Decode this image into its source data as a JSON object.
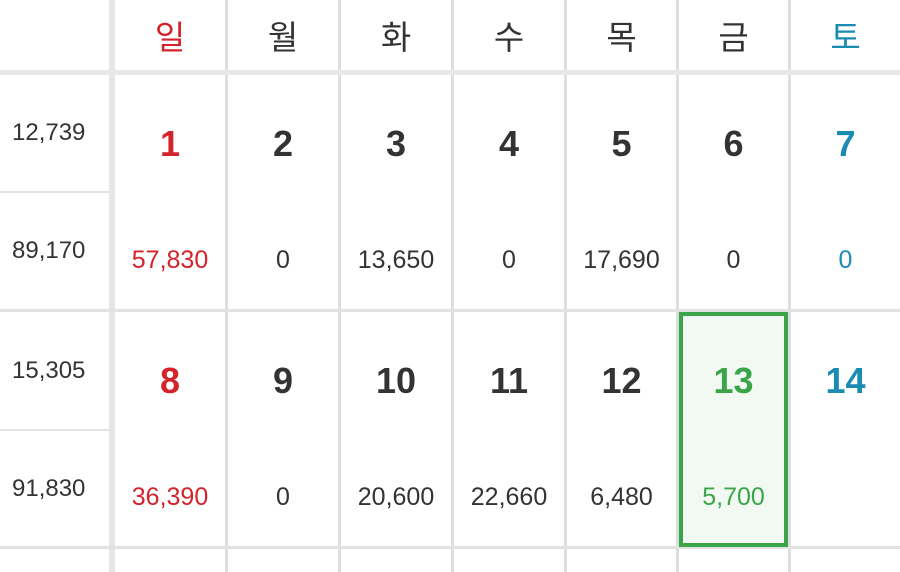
{
  "header": {
    "weekdays": [
      "일",
      "월",
      "화",
      "수",
      "목",
      "금",
      "토"
    ]
  },
  "weeks": [
    {
      "side_top": "12,739",
      "side_bottom": "89,170",
      "days": [
        "1",
        "2",
        "3",
        "4",
        "5",
        "6",
        "7"
      ],
      "amounts": [
        "57,830",
        "0",
        "13,650",
        "0",
        "17,690",
        "0",
        "0"
      ]
    },
    {
      "side_top": "15,305",
      "side_bottom": "91,830",
      "days": [
        "8",
        "9",
        "10",
        "11",
        "12",
        "13",
        "14"
      ],
      "amounts": [
        "36,390",
        "0",
        "20,600",
        "22,660",
        "6,480",
        "5,700",
        ""
      ]
    }
  ],
  "today": "13",
  "colors": {
    "sunday": "#d4232b",
    "saturday": "#1a8bb3",
    "today": "#3aa548",
    "text": "#333333"
  }
}
